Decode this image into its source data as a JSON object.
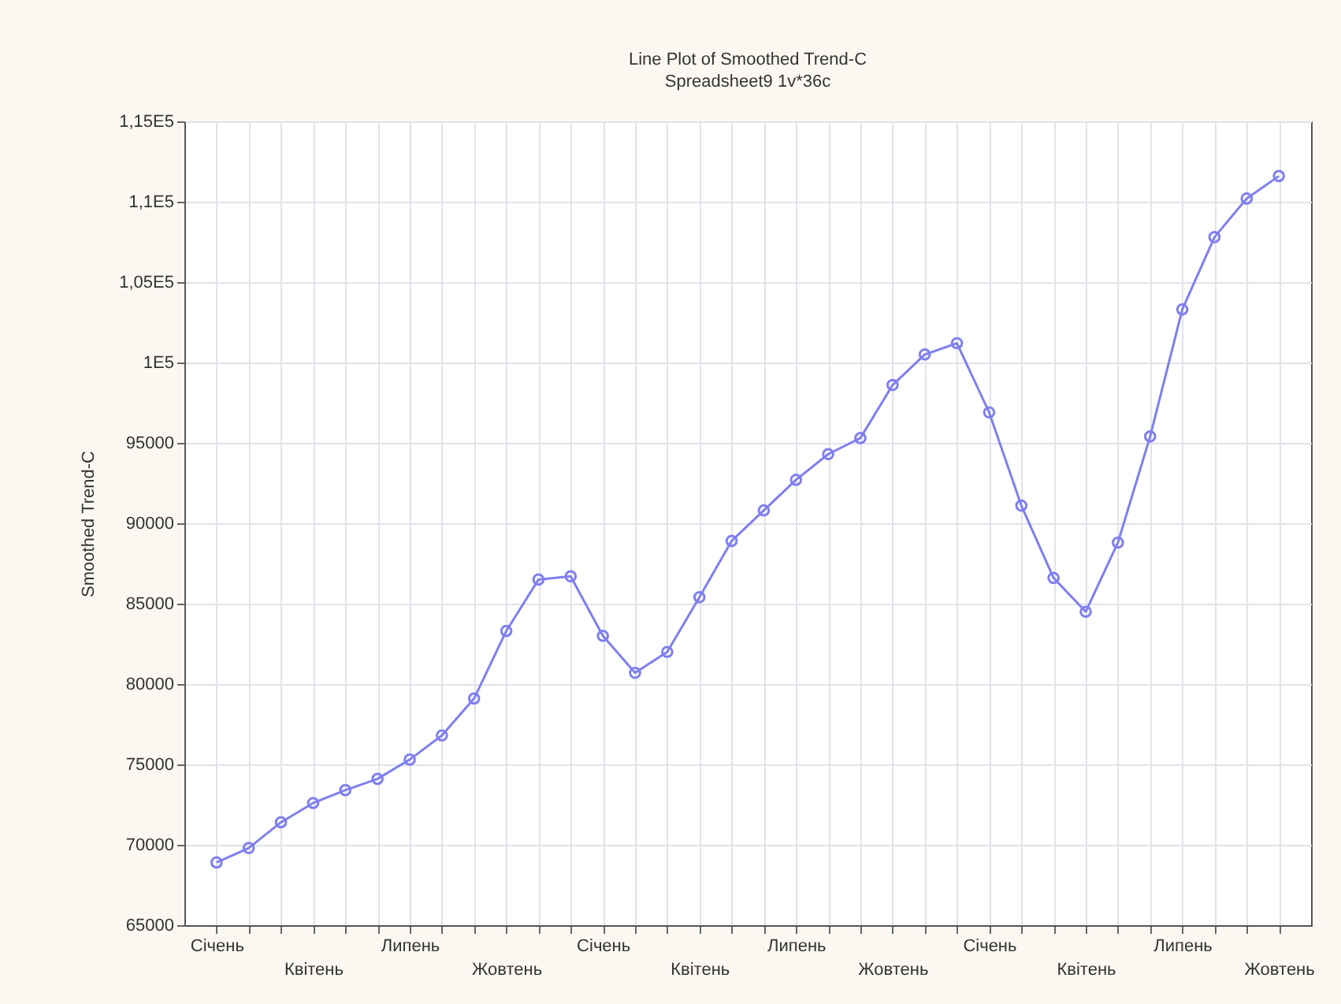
{
  "chart_data": {
    "type": "line",
    "title": "Line Plot of Smoothed Trend-C",
    "subtitle": "Spreadsheet9 1v*36c",
    "ylabel": "Smoothed Trend-C",
    "categories": [
      "Січень",
      null,
      null,
      "Квітень",
      null,
      null,
      "Липень",
      null,
      null,
      "Жовтень",
      null,
      null,
      "Січень",
      null,
      null,
      "Квітень",
      null,
      null,
      "Липень",
      null,
      null,
      "Жовтень",
      null,
      null,
      "Січень",
      null,
      null,
      "Квітень",
      null,
      null,
      "Липень",
      null,
      null,
      "Жовтень"
    ],
    "series": [
      {
        "color": "#7f7ff0",
        "values": [
          68900,
          69800,
          71400,
          72600,
          73400,
          74100,
          75300,
          76800,
          79100,
          83300,
          86500,
          86700,
          83000,
          80700,
          82000,
          85400,
          88900,
          90800,
          92700,
          94300,
          95300,
          98600,
          100500,
          101200,
          96900,
          91100,
          86600,
          84500,
          88800,
          95400,
          103300,
          107800,
          110200,
          111600
        ]
      }
    ],
    "ylim": [
      65000,
      115000
    ],
    "yticks": [
      65000,
      70000,
      75000,
      80000,
      85000,
      90000,
      95000,
      {
        "value": 100000,
        "label": "1E5"
      },
      {
        "value": 105000,
        "label": "1,05E5"
      },
      {
        "value": 110000,
        "label": "1,1E5"
      },
      {
        "value": 115000,
        "label": "1,15E5"
      }
    ],
    "grid": true,
    "marker": "circle"
  }
}
